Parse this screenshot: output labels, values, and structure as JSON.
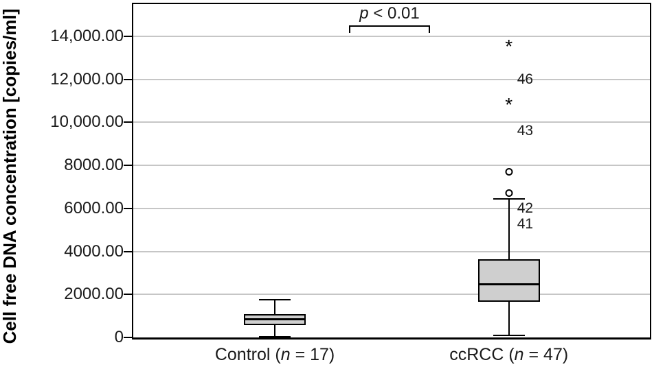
{
  "chart_data": {
    "type": "boxplot",
    "title": "",
    "xlabel": "",
    "ylabel": "Cell free DNA concentration [copies/ml]",
    "ylim": [
      0,
      15500
    ],
    "grid": "horizontal-gridlines",
    "legend": "none",
    "colors": {
      "box_fill": "#cfcfcf",
      "box_border": "#000000",
      "gridline": "#c6c6c6",
      "frame": "#000000",
      "text": "#1a1a1a"
    },
    "markers": {
      "extreme_outlier_char": "*",
      "mild_outlier": "open-circle"
    },
    "yticks": [
      {
        "value": 0,
        "label": "0"
      },
      {
        "value": 2000,
        "label": "2000.00"
      },
      {
        "value": 4000,
        "label": "4000.00"
      },
      {
        "value": 6000,
        "label": "6000.00"
      },
      {
        "value": 8000,
        "label": "8000.00"
      },
      {
        "value": 10000,
        "label": "10,000.00"
      },
      {
        "value": 12000,
        "label": "12,000.00"
      },
      {
        "value": 14000,
        "label": "14,000.00"
      }
    ],
    "groups": [
      {
        "id": "control",
        "label_prefix": "Control (",
        "label_n": "n",
        "label_suffix": " = 17)",
        "n": 17,
        "center_frac": 0.274,
        "stats": {
          "whisker_low": 20,
          "q1": 560,
          "median": 850,
          "q3": 1100,
          "whisker_high": 1750
        },
        "outliers": [],
        "case_labels": []
      },
      {
        "id": "ccrcc",
        "label_prefix": "ccRCC (",
        "label_n": "n",
        "label_suffix": " = 47)",
        "n": 47,
        "center_frac": 0.727,
        "stats": {
          "whisker_low": 80,
          "q1": 1650,
          "median": 2500,
          "q3": 3650,
          "whisker_high": 6450
        },
        "outliers": [
          {
            "marker": "extreme",
            "value": 13700
          },
          {
            "marker": "extreme",
            "value": 11000
          },
          {
            "marker": "mild",
            "value": 7700
          },
          {
            "marker": "mild",
            "value": 6700
          }
        ],
        "case_labels": [
          {
            "text": "46",
            "value": 12000
          },
          {
            "text": "43",
            "value": 9600
          },
          {
            "text": "42",
            "value": 6000
          },
          {
            "text": "41",
            "value": 5250
          }
        ]
      }
    ],
    "annotation": {
      "text_italic": "p",
      "text_rest": " < 0.01",
      "x1_frac": 0.4176,
      "x2_frac": 0.5745,
      "y_value": 14500
    }
  }
}
